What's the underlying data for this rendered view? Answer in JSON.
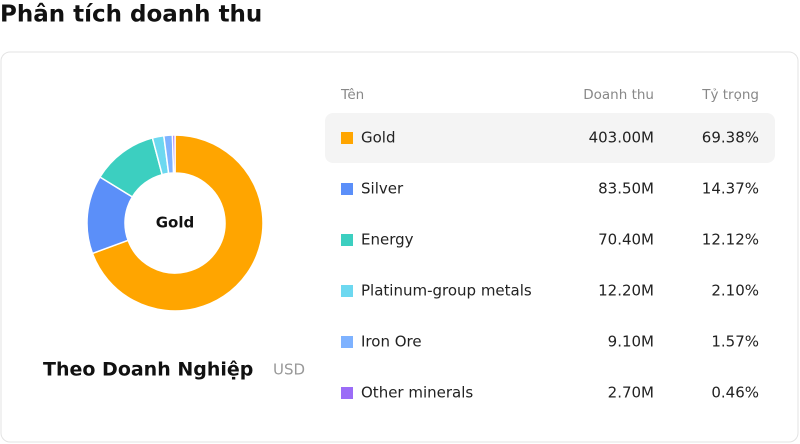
{
  "page_title": "Phân tích doanh thu",
  "chart_data": {
    "type": "donut",
    "title": "Theo Doanh Nghiệp",
    "unit": "USD",
    "center_label": "Gold",
    "columns": [
      "Tên",
      "Doanh thu",
      "Tỷ trọng"
    ],
    "categories": [
      "Gold",
      "Silver",
      "Energy",
      "Platinum-group metals",
      "Iron Ore",
      "Other minerals"
    ],
    "revenues": [
      "403.00M",
      "83.50M",
      "70.40M",
      "12.20M",
      "9.10M",
      "2.70M"
    ],
    "values": [
      69.38,
      14.37,
      12.12,
      2.1,
      1.57,
      0.46
    ],
    "value_labels": [
      "69.38%",
      "14.37%",
      "12.12%",
      "2.10%",
      "1.57%",
      "0.46%"
    ],
    "colors": [
      "#ffa500",
      "#5b8ff9",
      "#3ccfc0",
      "#6dd8f0",
      "#7eb2ff",
      "#9b6cf7"
    ],
    "highlighted": 0
  }
}
